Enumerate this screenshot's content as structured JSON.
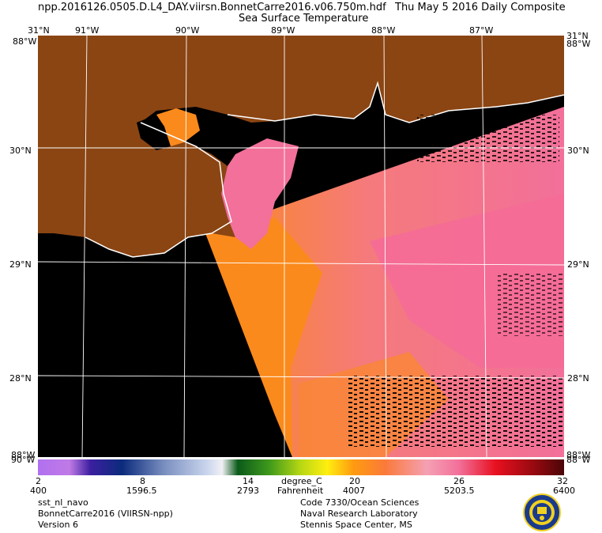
{
  "header": {
    "filename": "npp.2016126.0505.D.L4_DAY.viirsn.BonnetCarre2016.v06.750m.hdf",
    "date": "Thu May  5 2016 Daily Composite",
    "product": "Sea Surface Temperature"
  },
  "map": {
    "lon_labels": [
      "91°W",
      "90°W",
      "89°W",
      "88°W",
      "87°W"
    ],
    "lat_labels": [
      "30°N",
      "29°N",
      "28°N"
    ],
    "corner_top_left": "31°N",
    "corner_top_right": "31°N",
    "corner_bottom_left": "90°W",
    "corner_bottom_right": "88°W",
    "corner_left_top": "88°W",
    "corner_right_top": "88°W",
    "corner_left_bottom": "88°W",
    "corner_right_bottom": "88°W",
    "colors": {
      "land": "#8b4513",
      "nodata": "#000000",
      "sst_warm": "#f2709a",
      "sst_mid": "#fb8a1c",
      "grid": "#ffffff",
      "coast": "#ffffff"
    }
  },
  "colorbar": {
    "celsius_ticks": [
      "2",
      "8",
      "14",
      "20",
      "26",
      "32"
    ],
    "fahrenheit_ticks": [
      "400",
      "1596.5",
      "2793",
      "4007",
      "5203.5",
      "6400"
    ],
    "unit_c": "degree_C",
    "unit_f": "Fahrenheit"
  },
  "footer": {
    "left": [
      "sst_nl_navo",
      "BonnetCarre2016 (VIIRSN-npp)",
      "Version 6"
    ],
    "right": [
      "Code 7330/Ocean Sciences",
      "Naval Research Laboratory",
      "Stennis Space Center, MS"
    ],
    "logo_name": "nrl-seal-icon"
  }
}
